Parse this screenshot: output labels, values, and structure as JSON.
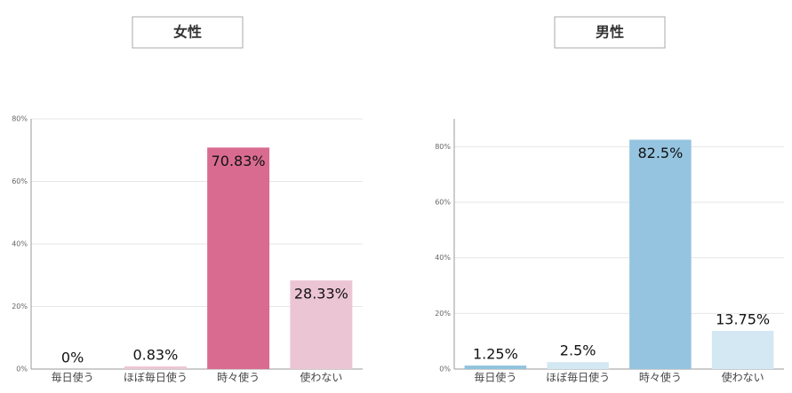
{
  "chart_data": [
    {
      "type": "bar",
      "title": "女性",
      "categories": [
        "毎日使う",
        "ほぼ毎日使う",
        "時々使う",
        "使わない"
      ],
      "values": [
        0,
        0.83,
        70.83,
        28.33
      ],
      "value_labels": [
        "0%",
        "0.83%",
        "70.83%",
        "28.33%"
      ],
      "colors": [
        "#ecc5d4",
        "#ecc5d4",
        "#d96b91",
        "#ecc5d4"
      ],
      "ylim": [
        0,
        80
      ],
      "yticks": [
        {
          "value": 0,
          "label": "0%"
        },
        {
          "value": 20,
          "label": "20%"
        },
        {
          "value": 40,
          "label": "40%"
        },
        {
          "value": 60,
          "label": "60%"
        },
        {
          "value": 80,
          "label": "80%"
        }
      ],
      "grid": true
    },
    {
      "type": "bar",
      "title": "男性",
      "categories": [
        "毎日使う",
        "ほぼ毎日使う",
        "時々使う",
        "使わない"
      ],
      "values": [
        1.25,
        2.5,
        82.5,
        13.75
      ],
      "value_labels": [
        "1.25%",
        "2.5%",
        "82.5%",
        "13.75%"
      ],
      "colors": [
        "#90c3dd",
        "#d4e8f3",
        "#95c4e0",
        "#d4e8f3"
      ],
      "ylim": [
        0,
        90
      ],
      "yticks": [
        {
          "value": 0,
          "label": "0%"
        },
        {
          "value": 20,
          "label": "20%"
        },
        {
          "value": 40,
          "label": "40%"
        },
        {
          "value": 60,
          "label": "60%"
        },
        {
          "value": 80,
          "label": "80%"
        }
      ],
      "grid": true
    }
  ]
}
